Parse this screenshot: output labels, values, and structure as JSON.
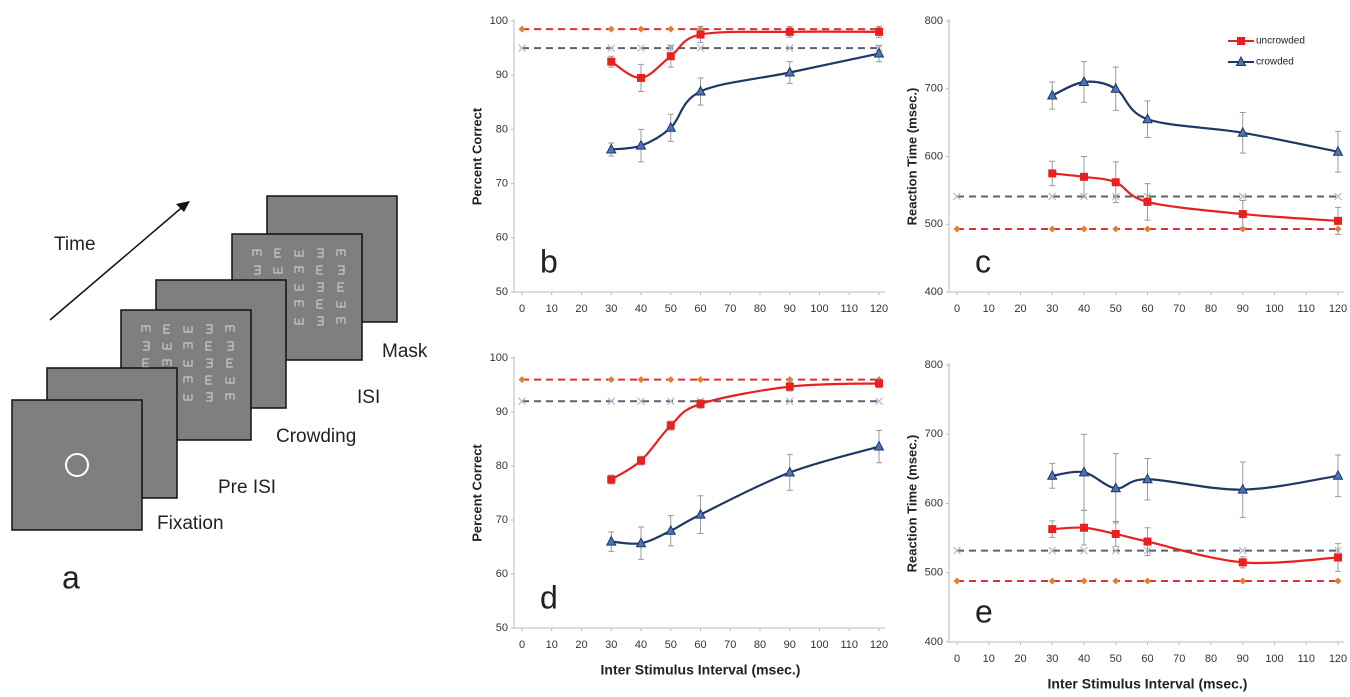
{
  "diagram": {
    "time": "Time",
    "frames": [
      "Fixation",
      "Pre ISI",
      "Crowding",
      "ISI",
      "Mask"
    ],
    "panel": "a"
  },
  "chart_data": [
    {
      "type": "line",
      "annotation": "b",
      "ylabel": "Percent Correct",
      "x": [
        0,
        30,
        40,
        50,
        60,
        90,
        120
      ],
      "xlim": [
        0,
        120
      ],
      "xticks": [
        0,
        10,
        20,
        30,
        40,
        50,
        60,
        70,
        80,
        90,
        100,
        110,
        120
      ],
      "ylim": [
        50,
        100
      ],
      "yticks": [
        50,
        60,
        70,
        80,
        90,
        100
      ],
      "series": [
        {
          "color": "#e03030",
          "marker": "diamond",
          "dash": true,
          "values": [
            98.5,
            98.5,
            98.5,
            98.5,
            98.5,
            98.5,
            98.5
          ]
        },
        {
          "color": "#5a6070",
          "marker": "x",
          "dash": true,
          "values": [
            95,
            95,
            95,
            95,
            95,
            95,
            95
          ]
        },
        {
          "name": "uncrowded",
          "color": "#e8201f",
          "marker": "square",
          "values": [
            null,
            92.5,
            89.5,
            93.5,
            97.5,
            98,
            98
          ],
          "errors": [
            null,
            1,
            2.5,
            2,
            1.5,
            1,
            1
          ]
        },
        {
          "name": "crowded",
          "color": "#1f3864",
          "marker": "triangle",
          "values": [
            null,
            76.3,
            77,
            80.3,
            87,
            90.5,
            94
          ],
          "errors": [
            null,
            1.2,
            3,
            2.5,
            2.5,
            2,
            1.5
          ]
        }
      ]
    },
    {
      "type": "line",
      "annotation": "c",
      "ylabel": "Reaction Time  (msec.)",
      "legend": "upper right",
      "x": [
        0,
        30,
        40,
        50,
        60,
        90,
        120
      ],
      "xlim": [
        0,
        120
      ],
      "xticks": [
        0,
        10,
        20,
        30,
        40,
        50,
        60,
        70,
        80,
        90,
        100,
        110,
        120
      ],
      "ylim": [
        400,
        800
      ],
      "yticks": [
        400,
        500,
        600,
        700,
        800
      ],
      "series": [
        {
          "color": "#e03030",
          "marker": "diamond",
          "dash": true,
          "values": [
            493,
            493,
            493,
            493,
            493,
            493,
            493
          ]
        },
        {
          "color": "#5a6070",
          "marker": "x",
          "dash": true,
          "values": [
            541,
            541,
            541,
            541,
            541,
            541,
            541
          ]
        },
        {
          "name": "uncrowded",
          "color": "#e8201f",
          "marker": "square",
          "values": [
            null,
            575,
            570,
            562,
            533,
            515,
            505
          ],
          "errors": [
            null,
            18,
            30,
            30,
            27,
            20,
            20
          ]
        },
        {
          "name": "crowded",
          "color": "#1f3864",
          "marker": "triangle",
          "values": [
            null,
            690,
            710,
            700,
            655,
            635,
            607
          ],
          "errors": [
            null,
            20,
            30,
            32,
            27,
            30,
            30
          ]
        }
      ]
    },
    {
      "type": "line",
      "annotation": "d",
      "ylabel": "Percent Correct",
      "xlabel": "Inter Stimulus Interval (msec.)",
      "x": [
        0,
        30,
        40,
        50,
        60,
        90,
        120
      ],
      "xlim": [
        0,
        120
      ],
      "xticks": [
        0,
        10,
        20,
        30,
        40,
        50,
        60,
        70,
        80,
        90,
        100,
        110,
        120
      ],
      "ylim": [
        50,
        100
      ],
      "yticks": [
        50,
        60,
        70,
        80,
        90,
        100
      ],
      "series": [
        {
          "color": "#e03030",
          "marker": "diamond",
          "dash": true,
          "values": [
            96,
            96,
            96,
            96,
            96,
            96,
            96
          ]
        },
        {
          "color": "#5a6070",
          "marker": "x",
          "dash": true,
          "values": [
            92,
            92,
            92,
            92,
            92,
            92,
            92
          ]
        },
        {
          "name": "uncrowded",
          "color": "#e8201f",
          "marker": "square",
          "values": [
            null,
            77.5,
            81,
            87.5,
            91.5,
            94.7,
            95.3
          ],
          "errors": [
            null,
            0.8,
            0.8,
            0.8,
            0.8,
            0.8,
            0.8
          ]
        },
        {
          "name": "crowded",
          "color": "#1f3864",
          "marker": "triangle",
          "values": [
            null,
            66,
            65.7,
            68,
            71,
            78.8,
            83.6
          ],
          "errors": [
            null,
            1.8,
            3,
            2.8,
            3.5,
            3.3,
            3
          ]
        }
      ]
    },
    {
      "type": "line",
      "annotation": "e",
      "ylabel": "Reaction Time  (msec.)",
      "xlabel": "Inter Stimulus Interval (msec.)",
      "x": [
        0,
        30,
        40,
        50,
        60,
        90,
        120
      ],
      "xlim": [
        0,
        120
      ],
      "xticks": [
        0,
        10,
        20,
        30,
        40,
        50,
        60,
        70,
        80,
        90,
        100,
        110,
        120
      ],
      "ylim": [
        400,
        800
      ],
      "yticks": [
        400,
        500,
        600,
        700,
        800
      ],
      "series": [
        {
          "color": "#e03030",
          "marker": "diamond",
          "dash": true,
          "values": [
            488,
            488,
            488,
            488,
            488,
            488,
            488
          ]
        },
        {
          "color": "#5a6070",
          "marker": "x",
          "dash": true,
          "values": [
            532,
            532,
            532,
            532,
            532,
            532,
            532
          ]
        },
        {
          "name": "uncrowded",
          "color": "#e8201f",
          "marker": "square",
          "values": [
            null,
            563,
            565,
            556,
            545,
            515,
            522
          ],
          "errors": [
            null,
            12,
            25,
            18,
            20,
            8,
            20
          ]
        },
        {
          "name": "crowded",
          "color": "#1f3864",
          "marker": "triangle",
          "values": [
            null,
            640,
            645,
            622,
            635,
            620,
            640
          ],
          "errors": [
            null,
            18,
            55,
            50,
            30,
            40,
            30
          ]
        }
      ]
    }
  ]
}
